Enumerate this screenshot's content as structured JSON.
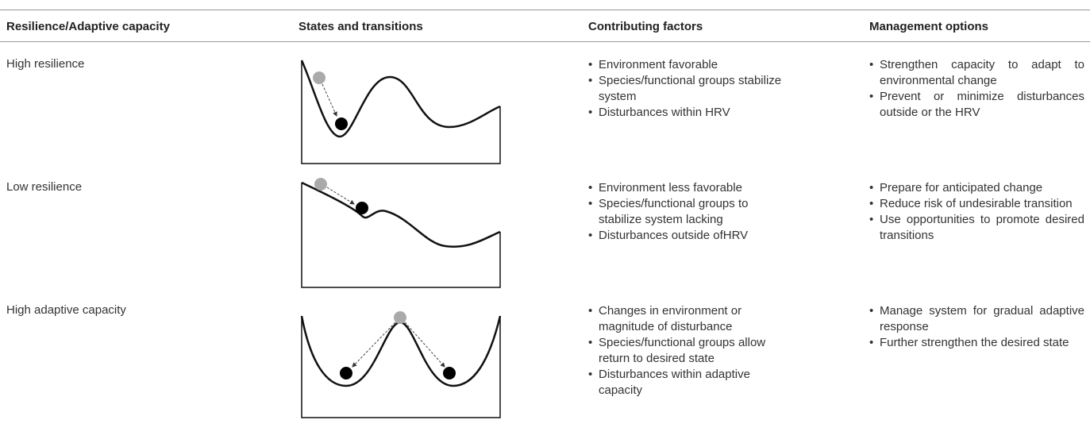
{
  "table": {
    "header": [
      "Resilience/Adaptive capacity",
      "States and transitions",
      "Contributing factors",
      "Management options"
    ],
    "rows": [
      {
        "label": "High resilience",
        "factors": [
          "Environment favorable",
          "Species/functional groups stabilize system",
          "Disturbances within HRV"
        ],
        "options": [
          "Strengthen capacity to adapt to environmental change",
          "Prevent or minimize disturbances outside or the HRV"
        ]
      },
      {
        "label": "Low resilience",
        "factors": [
          "Environment less favorable",
          "Species/functional groups to stabilize system lacking",
          "Disturbances outside ofHRV"
        ],
        "options": [
          "Prepare for anticipated change",
          "Reduce risk of undesirable transition",
          "Use opportunities to promote desired transitions"
        ]
      },
      {
        "label": "High adaptive capacity",
        "factors": [
          "Changes in environment or magnitude of disturbance",
          "Species/functional groups allow return to desired state",
          "Disturbances within adaptive capacity"
        ],
        "options": [
          "Manage system for gradual adaptive response",
          "Further strengthen the desired state"
        ]
      }
    ]
  }
}
